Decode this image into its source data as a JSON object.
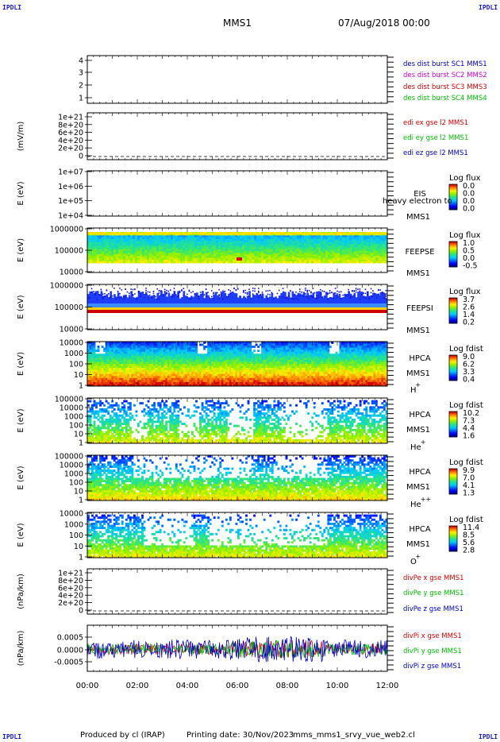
{
  "header": {
    "corner_tl": "IPDLI",
    "corner_tr": "IPDLI",
    "corner_bl": "IPDLI",
    "corner_br": "IPDLI",
    "spacecraft": "MMS1",
    "datetime": "07/Aug/2018 00:00"
  },
  "footer": {
    "produced_by": "Produced by cl (IRAP)",
    "printing_date": "Printing date: 30/Nov/2023",
    "script_name": "mms_mms1_srvy_vue_web2.cl"
  },
  "colors": {
    "mms1": "#0000c8",
    "mms2": "#d000d0",
    "mms3": "#d00000",
    "mms4": "#00c000",
    "x": "#e00000",
    "y": "#00c000",
    "z": "#0000d0"
  },
  "chart_data": [
    {
      "type": "line",
      "id": "dist",
      "yticks": [
        "4",
        "3",
        "2",
        "1"
      ],
      "ylim": [
        0.5,
        4.5
      ],
      "series": [
        {
          "name": "des dist burst SC1 MMS1",
          "color": "#0000c8",
          "values": []
        },
        {
          "name": "des dist burst SC2 MMS2",
          "color": "#d000d0",
          "values": []
        },
        {
          "name": "des dist burst SC3 MMS3",
          "color": "#d00000",
          "values": []
        },
        {
          "name": "des dist burst SC4 MMS4",
          "color": "#00c000",
          "values": []
        }
      ]
    },
    {
      "type": "line",
      "id": "efield",
      "ylabel": "(mV/m)",
      "yticks": [
        "1e+21",
        "8e+20",
        "6e+20",
        "4e+20",
        "2e+20",
        "0"
      ],
      "ylim": [
        0,
        1e+21
      ],
      "series": [
        {
          "name": "edi ex gse l2 MMS1",
          "color": "#e00000",
          "values": []
        },
        {
          "name": "edi ey gse l2 MMS1",
          "color": "#00c000",
          "values": []
        },
        {
          "name": "edi ez gse l2 MMS1",
          "color": "#0000d0",
          "values": []
        }
      ]
    },
    {
      "type": "heatmap",
      "id": "eis",
      "ylabel": "E (eV)",
      "log_y": true,
      "yticks": [
        "1e+07",
        "1e+06",
        "1e+05",
        "1e+04"
      ],
      "ylim": [
        10000.0,
        10000000.0
      ],
      "instrument": [
        "EIS",
        "MMS1"
      ],
      "overlay_text": "heavy electron to",
      "colorbar": {
        "title": "Log flux",
        "ticks": [
          "0.0",
          "0.0",
          "0.0",
          "0.0"
        ]
      }
    },
    {
      "type": "heatmap",
      "id": "feepse",
      "ylabel": "E (eV)",
      "log_y": true,
      "yticks": [
        "1000000",
        "100000",
        "10000"
      ],
      "ylim": [
        10000,
        1000000
      ],
      "instrument": [
        "FEEPSE",
        "MMS1"
      ],
      "colorbar": {
        "title": "Log flux",
        "ticks": [
          "1.0",
          "0.5",
          "0.0",
          "-0.5"
        ]
      }
    },
    {
      "type": "heatmap",
      "id": "feepsi",
      "ylabel": "E (eV)",
      "log_y": true,
      "yticks": [
        "1000000",
        "100000",
        "10000"
      ],
      "ylim": [
        10000,
        1000000
      ],
      "instrument": [
        "FEEPSI",
        "MMS1"
      ],
      "colorbar": {
        "title": "Log flux",
        "ticks": [
          "3.7",
          "2.6",
          "1.4",
          "0.2"
        ]
      }
    },
    {
      "type": "heatmap",
      "id": "hpca_h",
      "ylabel": "E (eV)",
      "log_y": true,
      "yticks": [
        "10000",
        "1000",
        "100",
        "10",
        "1"
      ],
      "ylim": [
        1,
        30000
      ],
      "instrument": [
        "HPCA",
        "MMS1"
      ],
      "species": "H",
      "species_charge": "+",
      "colorbar": {
        "title": "Log fdist",
        "ticks": [
          "9.0",
          "6.2",
          "3.3",
          "0.4"
        ]
      }
    },
    {
      "type": "heatmap",
      "id": "hpca_he",
      "ylabel": "E (eV)",
      "log_y": true,
      "yticks": [
        "100000",
        "10000",
        "1000",
        "100",
        "10",
        "1"
      ],
      "ylim": [
        1,
        100000
      ],
      "instrument": [
        "HPCA",
        "MMS1"
      ],
      "species": "He",
      "species_charge": "+",
      "colorbar": {
        "title": "Log fdist",
        "ticks": [
          "10.2",
          "7.3",
          "4.4",
          "1.6"
        ]
      }
    },
    {
      "type": "heatmap",
      "id": "hpca_he2",
      "ylabel": "E (eV)",
      "log_y": true,
      "yticks": [
        "100000",
        "10000",
        "1000",
        "100",
        "10",
        "1"
      ],
      "ylim": [
        1,
        100000
      ],
      "instrument": [
        "HPCA",
        "MMS1"
      ],
      "species": "He",
      "species_charge": "++",
      "colorbar": {
        "title": "Log fdist",
        "ticks": [
          "9.9",
          "7.0",
          "4.1",
          "1.3"
        ]
      }
    },
    {
      "type": "heatmap",
      "id": "hpca_o",
      "ylabel": "E (eV)",
      "log_y": true,
      "yticks": [
        "10000",
        "1000",
        "100",
        "10",
        "1"
      ],
      "ylim": [
        1,
        30000
      ],
      "instrument": [
        "HPCA",
        "MMS1"
      ],
      "species": "O",
      "species_charge": "+",
      "colorbar": {
        "title": "Log fdist",
        "ticks": [
          "11.4",
          "8.5",
          "5.6",
          "2.8"
        ]
      }
    },
    {
      "type": "line",
      "id": "divpe",
      "ylabel": "(nPa/km)",
      "yticks": [
        "1e+21",
        "8e+20",
        "6e+20",
        "4e+20",
        "2e+20",
        "0"
      ],
      "ylim": [
        0,
        1e+21
      ],
      "series": [
        {
          "name": "divPe x gse MMS1",
          "color": "#e00000",
          "values": []
        },
        {
          "name": "divPe y gse MMS1",
          "color": "#00c000",
          "values": []
        },
        {
          "name": "divPe z gse MMS1",
          "color": "#0000d0",
          "values": []
        }
      ]
    },
    {
      "type": "line",
      "id": "divpi",
      "ylabel": "(nPa/km)",
      "yticks": [
        "0.0005",
        "0.0000",
        "-0.0005"
      ],
      "ylim": [
        -0.0008,
        0.0008
      ],
      "series": [
        {
          "name": "divPi x gse MMS1",
          "color": "#e00000"
        },
        {
          "name": "divPi y gse MMS1",
          "color": "#00c000"
        },
        {
          "name": "divPi z gse MMS1",
          "color": "#0000d0"
        }
      ]
    }
  ],
  "x_axis": {
    "ticks": [
      "00:00",
      "02:00",
      "04:00",
      "06:00",
      "08:00",
      "10:00",
      "12:00"
    ],
    "range_hours": [
      0,
      12
    ]
  }
}
